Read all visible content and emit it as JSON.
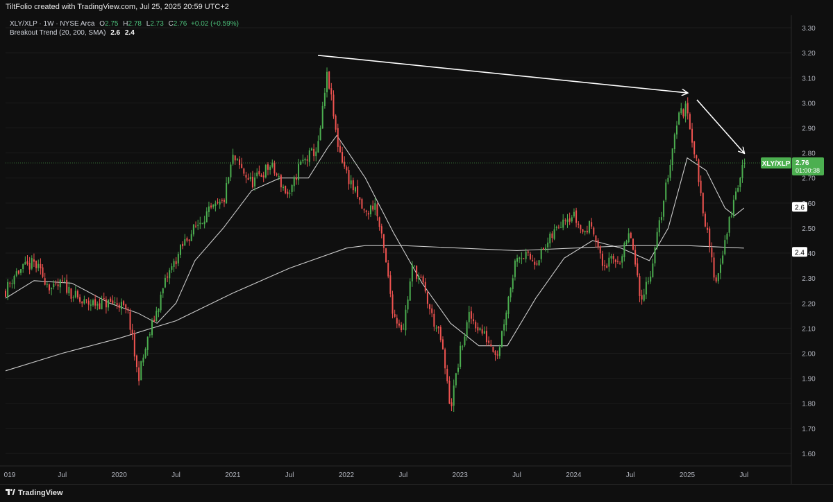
{
  "header": {
    "title": "TiltFolio created with TradingView.com, Jul 25, 2025 20:59 UTC+2"
  },
  "legend": {
    "symbol_line": "XLY/XLP · 1W · NYSE Arca",
    "open_label": "O",
    "open": "2.75",
    "high_label": "H",
    "high": "2.78",
    "low_label": "L",
    "low": "2.73",
    "close_label": "C",
    "close": "2.76",
    "change": "+0.02 (+0.59%)",
    "indicator_name": "Breakout Trend (20, 200, SMA)",
    "indicator_v1": "2.6",
    "indicator_v2": "2.4"
  },
  "price_tag": {
    "symbol": "XLY/XLP",
    "price": "2.76",
    "countdown": "01:00:38"
  },
  "footer": {
    "brand": "TradingView"
  },
  "colors": {
    "background": "#0f0f0f",
    "up": "#4caf50",
    "down": "#ef5350",
    "ma": "#e0e0e0",
    "tag_bg": "#4caf50"
  },
  "chart_data": {
    "type": "candlestick",
    "y_ticks": [
      "3.30",
      "3.20",
      "3.10",
      "3.00",
      "2.90",
      "2.80",
      "2.70",
      "2.60",
      "2.50",
      "2.40",
      "2.30",
      "2.20",
      "2.10",
      "2.00",
      "1.90",
      "1.80",
      "1.70",
      "1.60"
    ],
    "x_ticks": [
      {
        "label": "019",
        "date": "2019-01"
      },
      {
        "label": "Jul",
        "date": "2019-07"
      },
      {
        "label": "2020",
        "date": "2020-01"
      },
      {
        "label": "Jul",
        "date": "2020-07"
      },
      {
        "label": "2021",
        "date": "2021-01"
      },
      {
        "label": "Jul",
        "date": "2021-07"
      },
      {
        "label": "2022",
        "date": "2022-01"
      },
      {
        "label": "Jul",
        "date": "2022-07"
      },
      {
        "label": "2023",
        "date": "2023-01"
      },
      {
        "label": "Jul",
        "date": "2023-07"
      },
      {
        "label": "2024",
        "date": "2024-01"
      },
      {
        "label": "Jul",
        "date": "2024-07"
      },
      {
        "label": "2025",
        "date": "2025-01"
      },
      {
        "label": "Jul",
        "date": "2025-07"
      }
    ],
    "ylim": [
      1.55,
      3.35
    ],
    "xlim": [
      "2019-01",
      "2025-12"
    ],
    "path_anchors": [
      {
        "date": "2019-01",
        "value": 2.25
      },
      {
        "date": "2019-02",
        "value": 2.32
      },
      {
        "date": "2019-04",
        "value": 2.36
      },
      {
        "date": "2019-06",
        "value": 2.25
      },
      {
        "date": "2019-07",
        "value": 2.28
      },
      {
        "date": "2019-09",
        "value": 2.2
      },
      {
        "date": "2019-11",
        "value": 2.2
      },
      {
        "date": "2020-01",
        "value": 2.2
      },
      {
        "date": "2020-02",
        "value": 2.15
      },
      {
        "date": "2020-03",
        "value": 1.9
      },
      {
        "date": "2020-04",
        "value": 2.05
      },
      {
        "date": "2020-06",
        "value": 2.3
      },
      {
        "date": "2020-08",
        "value": 2.45
      },
      {
        "date": "2020-10",
        "value": 2.55
      },
      {
        "date": "2020-12",
        "value": 2.6
      },
      {
        "date": "2021-01",
        "value": 2.78
      },
      {
        "date": "2021-03",
        "value": 2.68
      },
      {
        "date": "2021-05",
        "value": 2.75
      },
      {
        "date": "2021-07",
        "value": 2.62
      },
      {
        "date": "2021-08",
        "value": 2.75
      },
      {
        "date": "2021-10",
        "value": 2.82
      },
      {
        "date": "2021-11",
        "value": 3.12
      },
      {
        "date": "2021-12",
        "value": 2.85
      },
      {
        "date": "2022-01",
        "value": 2.72
      },
      {
        "date": "2022-03",
        "value": 2.55
      },
      {
        "date": "2022-04",
        "value": 2.6
      },
      {
        "date": "2022-05",
        "value": 2.4
      },
      {
        "date": "2022-06",
        "value": 2.15
      },
      {
        "date": "2022-07",
        "value": 2.1
      },
      {
        "date": "2022-08",
        "value": 2.35
      },
      {
        "date": "2022-09",
        "value": 2.28
      },
      {
        "date": "2022-10",
        "value": 2.15
      },
      {
        "date": "2022-11",
        "value": 2.05
      },
      {
        "date": "2022-12",
        "value": 1.78
      },
      {
        "date": "2023-01",
        "value": 2.0
      },
      {
        "date": "2023-02",
        "value": 2.15
      },
      {
        "date": "2023-04",
        "value": 2.05
      },
      {
        "date": "2023-05",
        "value": 2.0
      },
      {
        "date": "2023-07",
        "value": 2.4
      },
      {
        "date": "2023-09",
        "value": 2.37
      },
      {
        "date": "2023-10",
        "value": 2.42
      },
      {
        "date": "2023-12",
        "value": 2.55
      },
      {
        "date": "2024-01",
        "value": 2.55
      },
      {
        "date": "2024-02",
        "value": 2.48
      },
      {
        "date": "2024-03",
        "value": 2.52
      },
      {
        "date": "2024-04",
        "value": 2.35
      },
      {
        "date": "2024-06",
        "value": 2.38
      },
      {
        "date": "2024-07",
        "value": 2.48
      },
      {
        "date": "2024-08",
        "value": 2.22
      },
      {
        "date": "2024-09",
        "value": 2.3
      },
      {
        "date": "2024-10",
        "value": 2.5
      },
      {
        "date": "2024-11",
        "value": 2.72
      },
      {
        "date": "2024-12",
        "value": 2.95
      },
      {
        "date": "2025-01",
        "value": 2.98
      },
      {
        "date": "2025-02",
        "value": 2.75
      },
      {
        "date": "2025-03",
        "value": 2.5
      },
      {
        "date": "2025-04",
        "value": 2.28
      },
      {
        "date": "2025-05",
        "value": 2.45
      },
      {
        "date": "2025-06",
        "value": 2.62
      },
      {
        "date": "2025-07",
        "value": 2.76
      }
    ],
    "sma20": [
      {
        "date": "2019-01",
        "value": 2.22
      },
      {
        "date": "2019-04",
        "value": 2.29
      },
      {
        "date": "2019-08",
        "value": 2.28
      },
      {
        "date": "2019-12",
        "value": 2.2
      },
      {
        "date": "2020-03",
        "value": 2.16
      },
      {
        "date": "2020-05",
        "value": 2.12
      },
      {
        "date": "2020-07",
        "value": 2.2
      },
      {
        "date": "2020-09",
        "value": 2.37
      },
      {
        "date": "2020-12",
        "value": 2.5
      },
      {
        "date": "2021-03",
        "value": 2.65
      },
      {
        "date": "2021-06",
        "value": 2.7
      },
      {
        "date": "2021-09",
        "value": 2.7
      },
      {
        "date": "2021-11",
        "value": 2.82
      },
      {
        "date": "2021-12",
        "value": 2.87
      },
      {
        "date": "2022-03",
        "value": 2.7
      },
      {
        "date": "2022-06",
        "value": 2.48
      },
      {
        "date": "2022-09",
        "value": 2.28
      },
      {
        "date": "2022-12",
        "value": 2.12
      },
      {
        "date": "2023-03",
        "value": 2.03
      },
      {
        "date": "2023-06",
        "value": 2.03
      },
      {
        "date": "2023-09",
        "value": 2.22
      },
      {
        "date": "2023-12",
        "value": 2.38
      },
      {
        "date": "2024-03",
        "value": 2.45
      },
      {
        "date": "2024-06",
        "value": 2.42
      },
      {
        "date": "2024-09",
        "value": 2.37
      },
      {
        "date": "2024-11",
        "value": 2.5
      },
      {
        "date": "2025-01",
        "value": 2.78
      },
      {
        "date": "2025-03",
        "value": 2.73
      },
      {
        "date": "2025-05",
        "value": 2.58
      },
      {
        "date": "2025-06",
        "value": 2.55
      },
      {
        "date": "2025-07",
        "value": 2.58
      }
    ],
    "sma200": [
      {
        "date": "2019-01",
        "value": 1.93
      },
      {
        "date": "2019-07",
        "value": 2.0
      },
      {
        "date": "2020-01",
        "value": 2.06
      },
      {
        "date": "2020-07",
        "value": 2.13
      },
      {
        "date": "2021-01",
        "value": 2.24
      },
      {
        "date": "2021-07",
        "value": 2.34
      },
      {
        "date": "2022-01",
        "value": 2.42
      },
      {
        "date": "2022-03",
        "value": 2.43
      },
      {
        "date": "2022-07",
        "value": 2.43
      },
      {
        "date": "2023-01",
        "value": 2.42
      },
      {
        "date": "2023-07",
        "value": 2.41
      },
      {
        "date": "2024-01",
        "value": 2.42
      },
      {
        "date": "2024-07",
        "value": 2.43
      },
      {
        "date": "2025-01",
        "value": 2.43
      },
      {
        "date": "2025-07",
        "value": 2.42
      }
    ],
    "last_price": 2.76,
    "ma_labels": [
      "2.6",
      "2.4"
    ],
    "annotations": [
      {
        "type": "arrow",
        "from": {
          "date": "2021-10",
          "value": 3.19
        },
        "to": {
          "date": "2025-01",
          "value": 3.04
        }
      },
      {
        "type": "arrow",
        "from": {
          "date": "2025-01",
          "value": 3.04
        },
        "to": {
          "date": "2025-07",
          "value": 2.8
        }
      }
    ]
  }
}
